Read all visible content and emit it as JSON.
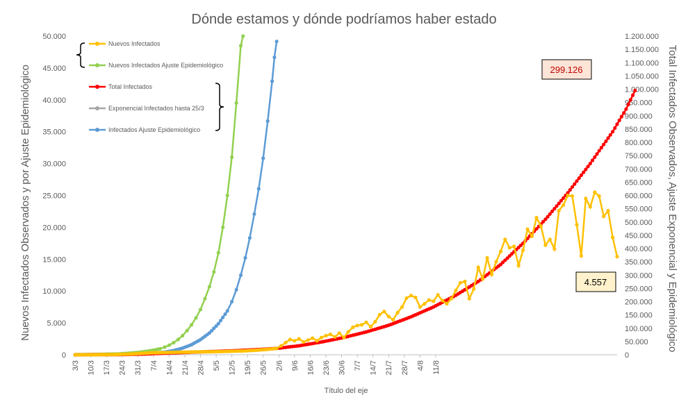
{
  "chart_data": {
    "type": "line",
    "title": "Dónde estamos y dónde podríamos haber estado",
    "xlabel": "Título del eje",
    "ylabel_left": "Nuevos Infectados Observados y por Ajuste Epidemiológico",
    "ylabel_right": "Total Infectados Observados, Ajuste Exponencial y Epidemiológico",
    "ylim_left": [
      0,
      50000
    ],
    "ylim_right": [
      0,
      1200000
    ],
    "yticks_left": [
      "0",
      "5.000",
      "10.000",
      "15.000",
      "20.000",
      "25.000",
      "30.000",
      "35.000",
      "40.000",
      "45.000",
      "50.000"
    ],
    "yticks_right": [
      "0",
      "50.000",
      "100.000",
      "150.000",
      "200.000",
      "250.000",
      "300.000",
      "350.000",
      "400.000",
      "450.000",
      "500.000",
      "550.000",
      "600.000",
      "650.000",
      "700.000",
      "750.000",
      "800.000",
      "850.000",
      "900.000",
      "950.000",
      "1.000.000",
      "1.050.000",
      "1.100.000",
      "1.150.000",
      "1.200.000"
    ],
    "x_start": "3/3",
    "x_end": "17/8",
    "x_ticks": [
      "3/3",
      "10/3",
      "17/3",
      "24/3",
      "31/3",
      "7/4",
      "14/4",
      "21/4",
      "28/4",
      "5/5",
      "12/5",
      "19/5",
      "26/5",
      "2/6",
      "9/6",
      "16/6",
      "23/6",
      "30/6",
      "7/7",
      "14/7",
      "21/7",
      "28/7",
      "4/8",
      "11/8"
    ],
    "grid": false,
    "legend_position": "top-left, inside",
    "series": [
      {
        "name": "Nuevos Infectados",
        "axis": "left",
        "color": "#FFC000",
        "points": [
          [
            0,
            0
          ],
          [
            10,
            5
          ],
          [
            15,
            20
          ],
          [
            20,
            60
          ],
          [
            25,
            120
          ],
          [
            30,
            230
          ],
          [
            35,
            320
          ],
          [
            40,
            350
          ],
          [
            45,
            400
          ],
          [
            50,
            430
          ],
          [
            55,
            450
          ],
          [
            60,
            480
          ],
          [
            65,
            500
          ],
          [
            70,
            560
          ],
          [
            75,
            600
          ],
          [
            80,
            700
          ],
          [
            85,
            820
          ],
          [
            90,
            1000
          ],
          [
            92,
            1400
          ],
          [
            94,
            1900
          ],
          [
            96,
            2400
          ],
          [
            98,
            2200
          ],
          [
            100,
            2500
          ],
          [
            102,
            2000
          ],
          [
            104,
            2300
          ],
          [
            106,
            2600
          ],
          [
            108,
            2200
          ],
          [
            110,
            2700
          ],
          [
            112,
            3000
          ],
          [
            114,
            3200
          ],
          [
            116,
            2800
          ],
          [
            118,
            3400
          ],
          [
            120,
            2700
          ],
          [
            122,
            3600
          ],
          [
            124,
            4300
          ],
          [
            126,
            4600
          ],
          [
            128,
            4700
          ],
          [
            130,
            5100
          ],
          [
            132,
            4400
          ],
          [
            134,
            5200
          ],
          [
            136,
            6300
          ],
          [
            138,
            6800
          ],
          [
            140,
            6000
          ],
          [
            142,
            5500
          ],
          [
            144,
            6600
          ],
          [
            146,
            7500
          ],
          [
            148,
            8900
          ],
          [
            150,
            9300
          ],
          [
            152,
            9000
          ],
          [
            154,
            7500
          ],
          [
            156,
            8000
          ],
          [
            158,
            8600
          ],
          [
            160,
            8400
          ],
          [
            162,
            9400
          ],
          [
            164,
            8500
          ],
          [
            166,
            8000
          ],
          [
            168,
            8800
          ],
          [
            170,
            10100
          ],
          [
            172,
            11300
          ],
          [
            174,
            11500
          ],
          [
            176,
            8800
          ],
          [
            178,
            10300
          ],
          [
            180,
            13700
          ],
          [
            182,
            11900
          ],
          [
            184,
            15200
          ],
          [
            186,
            12600
          ],
          [
            188,
            14600
          ],
          [
            190,
            16200
          ],
          [
            192,
            18100
          ],
          [
            194,
            16800
          ],
          [
            196,
            17000
          ],
          [
            198,
            14000
          ],
          [
            200,
            16400
          ],
          [
            202,
            19700
          ],
          [
            204,
            18600
          ],
          [
            206,
            21500
          ],
          [
            208,
            20200
          ],
          [
            210,
            17200
          ],
          [
            212,
            18100
          ],
          [
            214,
            16600
          ],
          [
            216,
            22600
          ],
          [
            218,
            23500
          ],
          [
            220,
            25000
          ],
          [
            222,
            24900
          ],
          [
            224,
            20400
          ],
          [
            226,
            15500
          ],
          [
            228,
            24500
          ],
          [
            230,
            23200
          ],
          [
            232,
            25500
          ],
          [
            234,
            24900
          ],
          [
            236,
            21700
          ],
          [
            238,
            22600
          ],
          [
            240,
            18400
          ],
          [
            242,
            15400
          ]
        ]
      },
      {
        "name": "Nuevos Infectados Ajuste Epidemiológico",
        "axis": "left",
        "color": "#92D050",
        "points": [
          [
            0,
            20
          ],
          [
            10,
            60
          ],
          [
            20,
            150
          ],
          [
            26,
            300
          ],
          [
            30,
            450
          ],
          [
            34,
            650
          ],
          [
            38,
            950
          ],
          [
            40,
            1200
          ],
          [
            42,
            1500
          ],
          [
            44,
            1900
          ],
          [
            46,
            2400
          ],
          [
            48,
            3000
          ],
          [
            50,
            3800
          ],
          [
            52,
            4700
          ],
          [
            54,
            5800
          ],
          [
            56,
            7100
          ],
          [
            58,
            8800
          ],
          [
            60,
            10700
          ],
          [
            62,
            13000
          ],
          [
            64,
            16000
          ],
          [
            66,
            20000
          ],
          [
            68,
            25000
          ],
          [
            70,
            31000
          ],
          [
            72,
            39500
          ],
          [
            74,
            48500
          ],
          [
            75,
            50000
          ]
        ]
      },
      {
        "name": "Total Infectados",
        "axis": "right",
        "color": "#FF0000",
        "points": [
          [
            0,
            0
          ],
          [
            20,
            500
          ],
          [
            30,
            2500
          ],
          [
            40,
            6000
          ],
          [
            50,
            9000
          ],
          [
            60,
            12000
          ],
          [
            70,
            15000
          ],
          [
            80,
            19000
          ],
          [
            90,
            24000
          ],
          [
            100,
            34000
          ],
          [
            110,
            48000
          ],
          [
            120,
            65000
          ],
          [
            130,
            86000
          ],
          [
            140,
            111000
          ],
          [
            150,
            143000
          ],
          [
            160,
            180000
          ],
          [
            170,
            224000
          ],
          [
            180,
            276000
          ],
          [
            190,
            340000
          ],
          [
            200,
            420000
          ],
          [
            210,
            510000
          ],
          [
            220,
            610000
          ],
          [
            230,
            720000
          ],
          [
            240,
            840000
          ],
          [
            246,
            925000
          ],
          [
            250,
            995000
          ]
        ]
      },
      {
        "name": "Exponencial Infectados hasta 25/3",
        "axis": "right",
        "color": "#A5A5A5",
        "points": []
      },
      {
        "name": "Infectados Ajuste Epidemiológico",
        "axis": "right",
        "color": "#5B9BD5",
        "points": [
          [
            0,
            100
          ],
          [
            20,
            1000
          ],
          [
            30,
            3000
          ],
          [
            35,
            6000
          ],
          [
            40,
            10000
          ],
          [
            44,
            16000
          ],
          [
            48,
            25000
          ],
          [
            52,
            38000
          ],
          [
            56,
            57000
          ],
          [
            60,
            82000
          ],
          [
            64,
            117000
          ],
          [
            68,
            165000
          ],
          [
            70,
            200000
          ],
          [
            72,
            245000
          ],
          [
            74,
            300000
          ],
          [
            76,
            365000
          ],
          [
            78,
            440000
          ],
          [
            80,
            530000
          ],
          [
            82,
            625000
          ],
          [
            84,
            740000
          ],
          [
            86,
            880000
          ],
          [
            88,
            1030000
          ],
          [
            89,
            1120000
          ],
          [
            90,
            1180000
          ]
        ]
      }
    ],
    "annotations": [
      {
        "text": "299.126",
        "fill": "#FCE4D6"
      },
      {
        "text": "4.557",
        "fill": "#FFF2CC"
      }
    ]
  }
}
